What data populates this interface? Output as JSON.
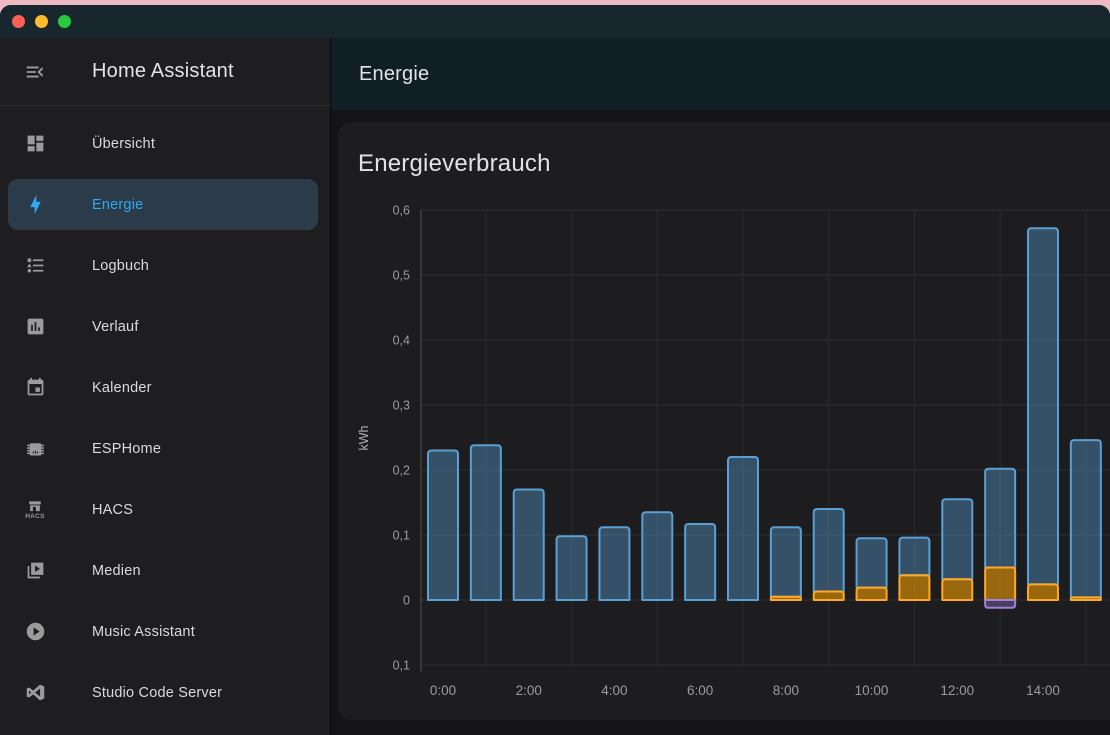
{
  "window": {
    "traffic_lights": [
      {
        "name": "close",
        "color": "#ff5f57"
      },
      {
        "name": "minimize",
        "color": "#febc2e"
      },
      {
        "name": "zoom",
        "color": "#28c840"
      }
    ]
  },
  "sidebar": {
    "title": "Home Assistant",
    "accent_color": "#2fa9ef",
    "selected_bg": "#2b3b4a",
    "items": [
      {
        "label": "Übersicht",
        "icon": "view-dashboard",
        "selected": false
      },
      {
        "label": "Energie",
        "icon": "lightning-bolt",
        "selected": true
      },
      {
        "label": "Logbuch",
        "icon": "format-list-bulleted",
        "selected": false
      },
      {
        "label": "Verlauf",
        "icon": "chart-box",
        "selected": false
      },
      {
        "label": "Kalender",
        "icon": "calendar",
        "selected": false
      },
      {
        "label": "ESPHome",
        "icon": "chip",
        "selected": false
      },
      {
        "label": "HACS",
        "icon": "storefront",
        "icon_text": "HACS",
        "selected": false
      },
      {
        "label": "Medien",
        "icon": "play-box-multiple",
        "selected": false
      },
      {
        "label": "Music Assistant",
        "icon": "play-circle",
        "selected": false
      },
      {
        "label": "Studio Code Server",
        "icon": "vscode",
        "selected": false
      }
    ]
  },
  "header": {
    "title": "Energie"
  },
  "card": {
    "title": "Energieverbrauch"
  },
  "chart_data": {
    "type": "bar",
    "stacked": true,
    "title": "Energieverbrauch",
    "ylabel": "kWh",
    "ylim": [
      -0.1,
      0.6
    ],
    "grid": true,
    "yticks": [
      0.6,
      0.5,
      0.4,
      0.3,
      0.2,
      0.1,
      0,
      -0.1
    ],
    "ytick_labels": [
      "0,6",
      "0,5",
      "0,4",
      "0,3",
      "0,2",
      "0,1",
      "0",
      "0,1"
    ],
    "hours": [
      "0:00",
      "1:00",
      "2:00",
      "3:00",
      "4:00",
      "5:00",
      "6:00",
      "7:00",
      "8:00",
      "9:00",
      "10:00",
      "11:00",
      "12:00",
      "13:00",
      "14:00",
      "15:00"
    ],
    "xtick_labels": [
      "0:00",
      "2:00",
      "4:00",
      "6:00",
      "8:00",
      "10:00",
      "12:00",
      "14:00"
    ],
    "xtick_hours": [
      0,
      2,
      4,
      6,
      8,
      10,
      12,
      14
    ],
    "series": [
      {
        "id": "blue",
        "color": "#5b9fd4",
        "fill": "rgba(91,159,212,0.4)",
        "values": [
          0.23,
          0.238,
          0.17,
          0.098,
          0.112,
          0.135,
          0.117,
          0.22,
          0.107,
          0.127,
          0.076,
          0.058,
          0.123,
          0.152,
          0.548,
          0.242
        ]
      },
      {
        "id": "orange",
        "color": "#ffa726",
        "fill": "rgba(255,165,0,0.55)",
        "values": [
          0,
          0,
          0,
          0,
          0,
          0,
          0,
          0,
          0.005,
          0.013,
          0.019,
          0.038,
          0.032,
          0.05,
          0.024,
          0.004
        ]
      },
      {
        "id": "purple",
        "color": "#a280db",
        "fill": "rgba(162,128,219,0.35)",
        "values": [
          0,
          0,
          0,
          0,
          0,
          0,
          0,
          0,
          0,
          0,
          0,
          0,
          0,
          -0.012,
          0,
          0
        ]
      }
    ]
  }
}
